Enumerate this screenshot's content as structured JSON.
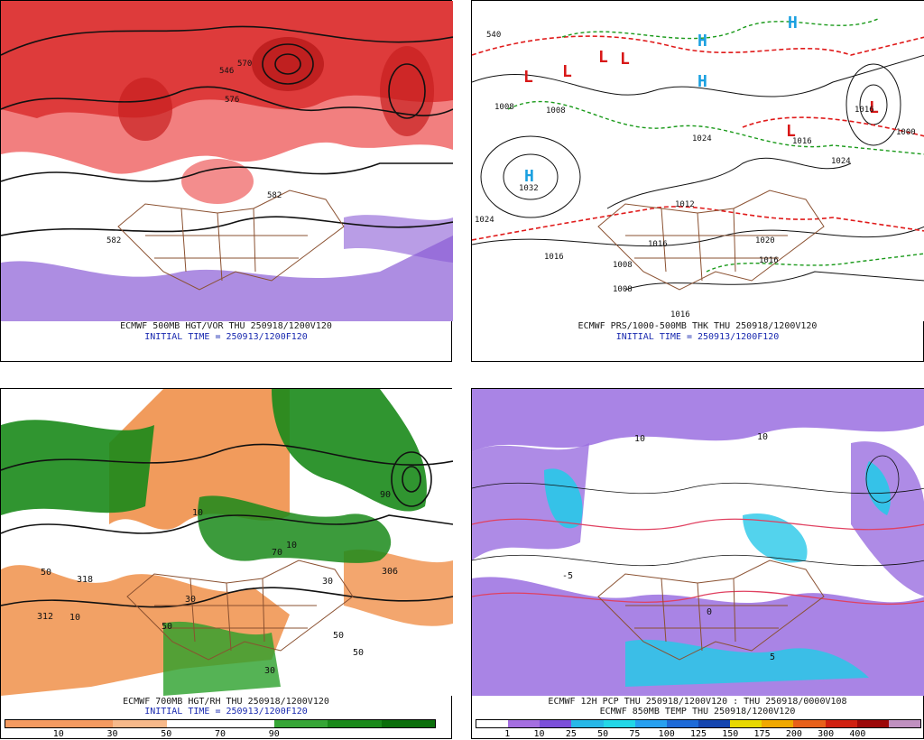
{
  "panels": [
    {
      "id": "p500",
      "caption_lines": [
        "ECMWF 500MB HGT/VOR THU 250918/1200V120",
        "INITIAL TIME = 250913/1200F120"
      ],
      "map_labels": [
        "546",
        "558",
        "564",
        "570",
        "576",
        "582",
        "582"
      ]
    },
    {
      "id": "pmslp",
      "caption_lines": [
        "ECMWF PRS/1000-500MB THK THU 250918/1200V120",
        "INITIAL TIME = 250913/1200F120"
      ],
      "map_labels": [
        "540",
        "1008",
        "1008",
        "1024",
        "1024",
        "1016",
        "1016",
        "1032",
        "1000",
        "1008",
        "1016",
        "1024",
        "1012",
        "1016",
        "1016",
        "1020",
        "1008",
        "1016"
      ]
    },
    {
      "id": "p700",
      "caption_lines": [
        "ECMWF 700MB HGT/RH THU 250918/1200V120",
        "INITIAL TIME = 250913/1200F120"
      ],
      "map_labels": [
        "10",
        "30",
        "50",
        "70",
        "90",
        "50",
        "50",
        "10",
        "30",
        "318",
        "312",
        "306",
        "50",
        "30",
        "10"
      ],
      "colorbar": {
        "colors": [
          "#f49a60",
          "#f49a60",
          "#f7b98a",
          "#ffffff",
          "#ffffff",
          "#36a636",
          "#1a8a1a",
          "#0b6f0b"
        ],
        "ticks": [
          "10",
          "30",
          "50",
          "70",
          "90"
        ]
      }
    },
    {
      "id": "ppcp",
      "caption_lines": [
        "ECMWF 12H PCP THU 250918/1200V120 : THU 250918/0000V108",
        "ECMWF 850MB TEMP THU 250918/1200V120"
      ],
      "map_labels": [
        "10",
        "10",
        "-5",
        "0",
        "5"
      ],
      "colorbar": {
        "colors": [
          "#ffffff",
          "#a46ee0",
          "#7b4fd9",
          "#27b8e8",
          "#22d7e8",
          "#27a0f0",
          "#1d6ad8",
          "#1545b0",
          "#e8d800",
          "#f0a800",
          "#e8601a",
          "#d02010",
          "#9c0808",
          "#c090c0"
        ],
        "ticks": [
          "1",
          "10",
          "25",
          "50",
          "75",
          "100",
          "125",
          "150",
          "175",
          "200",
          "300",
          "400"
        ]
      }
    }
  ],
  "colors": {
    "vorticity": "#e03030",
    "negvort": "#8a5cd6",
    "heights": "#111111",
    "borders": "#8a5030",
    "isobars": "#111111",
    "thickness_red": "#e01a1a",
    "thickness_green": "#1a9a1a",
    "pressure_H": "#1aa0e0",
    "pressure_L": "#d81818",
    "rh_green": "#1a8a1a",
    "rh_orange": "#f0904a",
    "pcp_purple": "#9a6ee0",
    "pcp_cyan": "#28c8e8",
    "temp_red": "#e04060"
  },
  "symbols": {
    "pressure_high": "H",
    "pressure_low": "L"
  }
}
